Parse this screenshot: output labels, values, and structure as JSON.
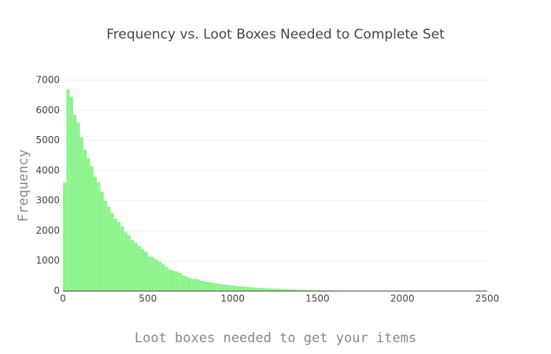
{
  "chart_data": {
    "type": "histogram",
    "title": "Frequency vs. Loot Boxes Needed to Complete Set",
    "x_label": "Loot boxes needed to get your items",
    "y_label": "Frequency",
    "color": "#8ef48e",
    "bins": [
      0,
      20,
      40,
      60,
      80,
      100,
      120,
      140,
      160,
      180,
      200,
      220,
      240,
      260,
      280,
      300,
      320,
      340,
      360,
      380,
      400,
      420,
      440,
      460,
      480,
      500,
      520,
      540,
      560,
      580,
      600,
      620,
      640,
      660,
      680,
      700,
      720,
      740,
      760,
      780,
      800,
      820,
      840,
      860,
      880,
      900,
      920,
      940,
      960,
      980,
      1000,
      1020,
      1040,
      1060,
      1080,
      1100,
      1120,
      1140,
      1160,
      1180,
      1200,
      1220,
      1240,
      1260,
      1280,
      1300,
      1320,
      1340,
      1360,
      1380,
      1400,
      1420,
      1440,
      1460,
      1480,
      1500,
      1520,
      1540,
      1560,
      1580,
      1600,
      1620,
      1640,
      1660,
      1680,
      1700,
      1720,
      1740,
      1760,
      1780,
      1800,
      1820,
      1840,
      1860,
      1880,
      1900,
      1920,
      1940,
      1960,
      1980,
      2000
    ],
    "counts": [
      3600,
      6700,
      6450,
      5850,
      5600,
      5100,
      4700,
      4400,
      4150,
      3800,
      3600,
      3300,
      3000,
      2800,
      2600,
      2400,
      2300,
      2150,
      1950,
      1850,
      1700,
      1600,
      1500,
      1400,
      1300,
      1150,
      1120,
      1050,
      980,
      900,
      800,
      720,
      680,
      650,
      600,
      520,
      480,
      430,
      400,
      400,
      350,
      330,
      310,
      290,
      270,
      250,
      235,
      220,
      205,
      190,
      180,
      165,
      155,
      145,
      135,
      125,
      118,
      110,
      102,
      95,
      88,
      82,
      76,
      71,
      66,
      61,
      57,
      53,
      49,
      45,
      42,
      39,
      36,
      33,
      31,
      29,
      27,
      25,
      23,
      21,
      19,
      18,
      16,
      15,
      14,
      13,
      12,
      11,
      10,
      9,
      8,
      7,
      7,
      6,
      5,
      5,
      4,
      4,
      3,
      3
    ],
    "xlim": [
      0,
      2500
    ],
    "ylim": [
      0,
      7000
    ],
    "xticks": [
      0,
      500,
      1000,
      1500,
      2000,
      2500
    ],
    "yticks": [
      0,
      1000,
      2000,
      3000,
      4000,
      5000,
      6000,
      7000
    ],
    "grid": true
  }
}
